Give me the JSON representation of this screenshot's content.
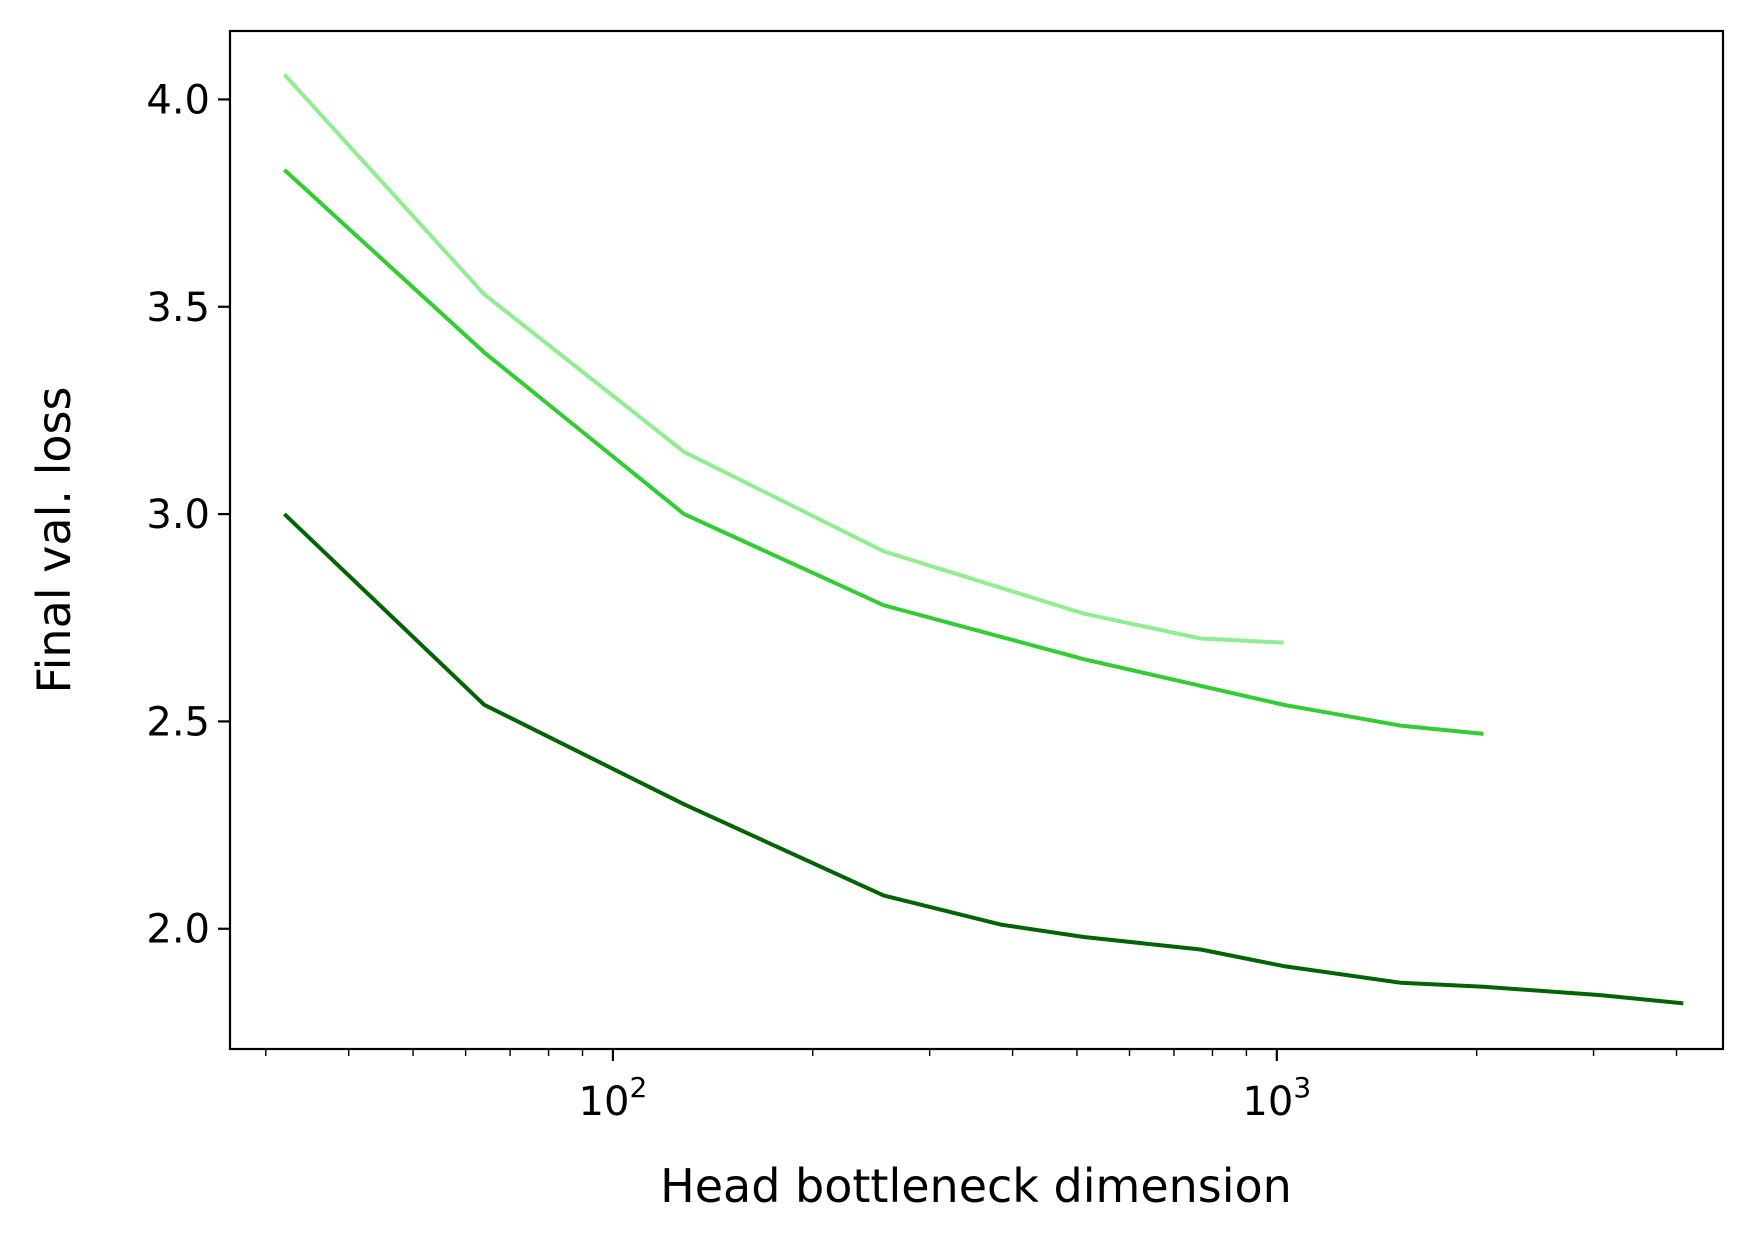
{
  "chart_data": {
    "type": "line",
    "title": "",
    "xlabel": "Head bottleneck dimension",
    "ylabel": "Final val. loss",
    "xscale": "log",
    "xlim": [
      26.5,
      4700
    ],
    "ylim": [
      1.71,
      4.165
    ],
    "grid": false,
    "legend": "none",
    "x_major_ticks": [
      {
        "value": 100,
        "base": "10",
        "exp": "2"
      },
      {
        "value": 1000,
        "base": "10",
        "exp": "3"
      }
    ],
    "x_minor_ticks": [
      30,
      40,
      50,
      60,
      70,
      80,
      90,
      200,
      300,
      400,
      500,
      600,
      700,
      800,
      900,
      2000,
      3000,
      4000
    ],
    "y_ticks": [
      {
        "value": 2.0,
        "label": "2.0"
      },
      {
        "value": 2.5,
        "label": "2.5"
      },
      {
        "value": 3.0,
        "label": "3.0"
      },
      {
        "value": 3.5,
        "label": "3.5"
      },
      {
        "value": 4.0,
        "label": "4.0"
      }
    ],
    "series": [
      {
        "name": "series-light",
        "color": "#90ee90",
        "x": [
          32,
          64,
          128,
          256,
          512,
          768,
          1024
        ],
        "y": [
          4.06,
          3.53,
          3.15,
          2.91,
          2.76,
          2.7,
          2.69
        ]
      },
      {
        "name": "series-medium",
        "color": "#32cd32",
        "x": [
          32,
          64,
          128,
          256,
          512,
          1024,
          1536,
          2048
        ],
        "y": [
          3.83,
          3.39,
          3.0,
          2.78,
          2.65,
          2.54,
          2.49,
          2.47
        ]
      },
      {
        "name": "series-dark",
        "color": "#006400",
        "x": [
          32,
          64,
          128,
          256,
          384,
          512,
          768,
          1024,
          1536,
          2048,
          3072,
          4096
        ],
        "y": [
          3.0,
          2.54,
          2.3,
          2.08,
          2.01,
          1.98,
          1.95,
          1.91,
          1.87,
          1.86,
          1.84,
          1.82
        ]
      }
    ]
  }
}
